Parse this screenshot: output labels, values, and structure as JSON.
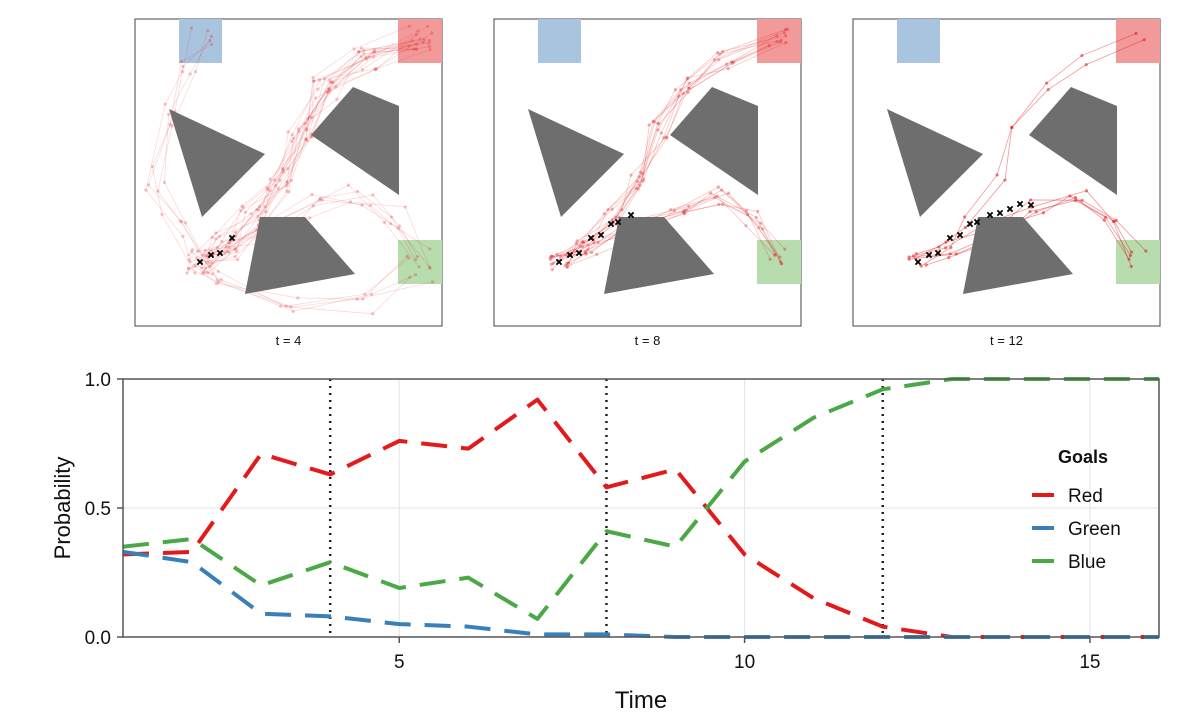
{
  "colors": {
    "red": "#e31a1c",
    "green_series": "#3a7fb8",
    "blue_series": "#4aa847",
    "region_red": "#f29a99",
    "region_blue": "#a9c4de",
    "region_green": "#b7dcae",
    "obstacle": "#6e6e6e",
    "axis": "#555555",
    "grid": "#e3e3e3"
  },
  "panels": [
    {
      "label": "t = 4",
      "observed_count": 4
    },
    {
      "label": "t = 8",
      "observed_count": 8
    },
    {
      "label": "t = 12",
      "observed_count": 12
    }
  ],
  "chart_data": {
    "type": "line",
    "xlabel": "Time",
    "ylabel": "Probability",
    "xlim": [
      1,
      16
    ],
    "ylim": [
      0,
      1
    ],
    "x_ticks": [
      5,
      10,
      15
    ],
    "y_ticks": [
      "0.0",
      "0.5",
      "1.0"
    ],
    "y_tick_values": [
      0,
      0.5,
      1
    ],
    "grid": true,
    "vlines": [
      4,
      8,
      12
    ],
    "legend": {
      "title": "Goals",
      "position": "right"
    },
    "x": [
      1,
      2,
      3,
      4,
      5,
      6,
      7,
      8,
      9,
      10,
      11,
      12,
      13,
      14,
      15,
      16
    ],
    "series": [
      {
        "name": "Red",
        "color_key": "red",
        "values": [
          0.32,
          0.33,
          0.71,
          0.63,
          0.76,
          0.73,
          0.92,
          0.58,
          0.65,
          0.32,
          0.15,
          0.04,
          0.0,
          0.0,
          0.0,
          0.0
        ]
      },
      {
        "name": "Green",
        "color_key": "green_series",
        "values": [
          0.33,
          0.29,
          0.09,
          0.08,
          0.05,
          0.04,
          0.01,
          0.01,
          0.0,
          0.0,
          0.0,
          0.0,
          0.0,
          0.0,
          0.0,
          0.0
        ]
      },
      {
        "name": "Blue",
        "color_key": "blue_series",
        "values": [
          0.35,
          0.38,
          0.2,
          0.29,
          0.19,
          0.23,
          0.07,
          0.41,
          0.35,
          0.68,
          0.85,
          0.96,
          1.0,
          1.0,
          1.0,
          1.0
        ]
      }
    ]
  }
}
